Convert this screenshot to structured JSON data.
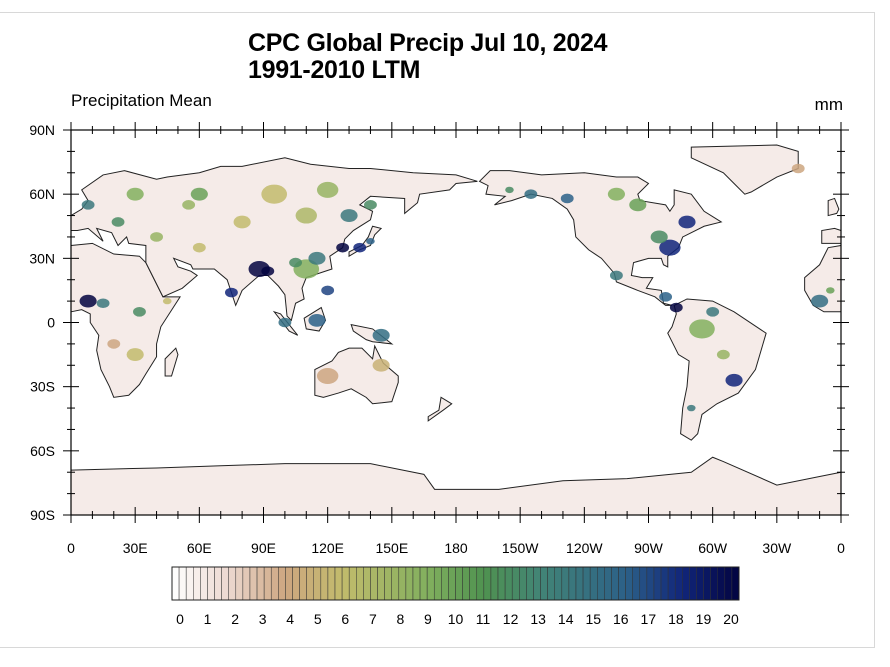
{
  "title": {
    "line1": "CPC Global Precip Jul 10, 2024",
    "line2": "1991-2010 LTM"
  },
  "left_subtitle": "Precipitation Mean",
  "units": "mm",
  "map": {
    "projection": "cylindrical equidistant",
    "lon_range": [
      0,
      360
    ],
    "lat_range": [
      -90,
      90
    ],
    "lat_labels": [
      "90N",
      "60N",
      "30N",
      "0",
      "30S",
      "60S",
      "90S"
    ],
    "lat_values": [
      90,
      60,
      30,
      0,
      -30,
      -60,
      -90
    ],
    "lon_labels": [
      "0",
      "30E",
      "60E",
      "90E",
      "120E",
      "150E",
      "180",
      "150W",
      "120W",
      "90W",
      "60W",
      "30W",
      "0"
    ],
    "lon_values": [
      0,
      30,
      60,
      90,
      120,
      150,
      180,
      210,
      240,
      270,
      300,
      330,
      360
    ],
    "land_color": "#f5ebe8",
    "coast_color": "#222222"
  },
  "colorbar": {
    "labels": [
      "0",
      "1",
      "2",
      "3",
      "4",
      "5",
      "6",
      "7",
      "8",
      "9",
      "10",
      "11",
      "12",
      "13",
      "14",
      "15",
      "16",
      "17",
      "18",
      "19",
      "20"
    ],
    "min": 0,
    "max": 20,
    "color_stops": [
      {
        "v": 0,
        "c": "#ffffff"
      },
      {
        "v": 2,
        "c": "#ecd8d0"
      },
      {
        "v": 4,
        "c": "#cda680"
      },
      {
        "v": 6,
        "c": "#c2bb6c"
      },
      {
        "v": 9,
        "c": "#82b05e"
      },
      {
        "v": 11,
        "c": "#4f9250"
      },
      {
        "v": 13,
        "c": "#428476"
      },
      {
        "v": 16,
        "c": "#2c6188"
      },
      {
        "v": 18,
        "c": "#11257a"
      },
      {
        "v": 20,
        "c": "#020440"
      }
    ]
  }
}
